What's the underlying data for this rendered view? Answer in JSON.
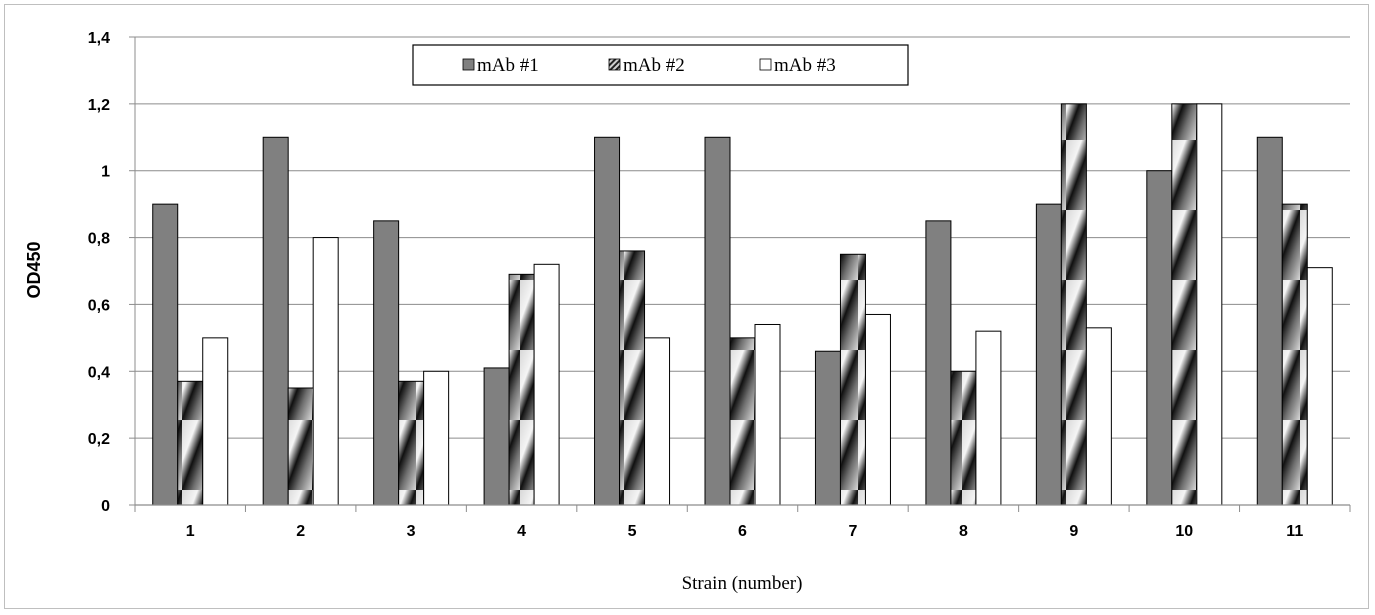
{
  "chart_data": {
    "type": "bar",
    "title": "",
    "xlabel": "Strain (number)",
    "ylabel": "OD450",
    "ylim": [
      0,
      1.4
    ],
    "yticks": [
      0,
      0.2,
      0.4,
      0.6,
      0.8,
      1,
      1.2,
      1.4
    ],
    "ytick_labels": [
      "0",
      "0,2",
      "0,4",
      "0,6",
      "0,8",
      "1",
      "1,2",
      "1,4"
    ],
    "categories": [
      "1",
      "2",
      "3",
      "4",
      "5",
      "6",
      "7",
      "8",
      "9",
      "10",
      "11"
    ],
    "grid": true,
    "legend_position": "top-center",
    "series": [
      {
        "name": "mAb #1",
        "color": "#808080",
        "pattern": "solid",
        "values": [
          0.9,
          1.1,
          0.85,
          0.41,
          1.1,
          1.1,
          0.46,
          0.85,
          0.9,
          1.0,
          1.1
        ]
      },
      {
        "name": "mAb #2",
        "color": "#303030",
        "pattern": "diagonal-gradient",
        "values": [
          0.37,
          0.35,
          0.37,
          0.69,
          0.76,
          0.5,
          0.75,
          0.4,
          1.2,
          1.2,
          0.9
        ]
      },
      {
        "name": "mAb #3",
        "color": "#ffffff",
        "pattern": "solid",
        "values": [
          0.5,
          0.8,
          0.4,
          0.72,
          0.5,
          0.54,
          0.57,
          0.52,
          0.53,
          1.2,
          0.71
        ]
      }
    ]
  }
}
